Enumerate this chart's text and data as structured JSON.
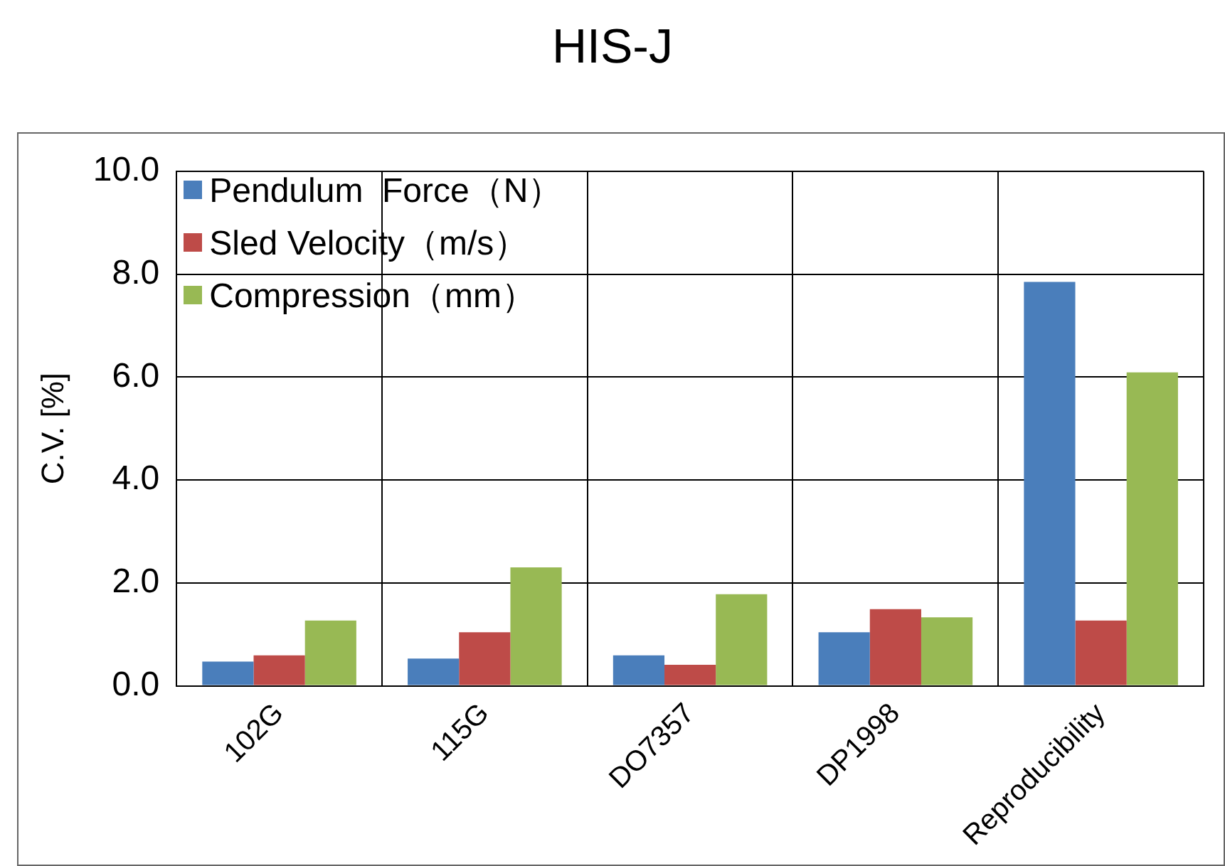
{
  "chart_data": {
    "type": "bar",
    "title": "HIS-J",
    "ylabel": "C.V. [%]",
    "categories": [
      "102G",
      "115G",
      "DO7357",
      "DP1998",
      "Reproducibility"
    ],
    "series": [
      {
        "name": "Pendulum  Force（N）",
        "color": "#4a7ebb",
        "values": [
          0.47,
          0.53,
          0.59,
          1.04,
          7.85
        ]
      },
      {
        "name": "Sled Velocity（m/s）",
        "color": "#be4b48",
        "values": [
          0.59,
          1.04,
          0.41,
          1.49,
          1.27
        ]
      },
      {
        "name": "Compression（mm）",
        "color": "#98b954",
        "values": [
          1.27,
          2.3,
          1.78,
          1.33,
          6.09
        ]
      }
    ],
    "ylim": [
      0,
      10
    ],
    "yticks": [
      {
        "value": 0,
        "label": "0.0"
      },
      {
        "value": 2,
        "label": "2.0"
      },
      {
        "value": 4,
        "label": "4.0"
      },
      {
        "value": 6,
        "label": "6.0"
      },
      {
        "value": 8,
        "label": "8.0"
      },
      {
        "value": 10,
        "label": "10.0"
      }
    ],
    "grid": true,
    "legend": "top left"
  }
}
